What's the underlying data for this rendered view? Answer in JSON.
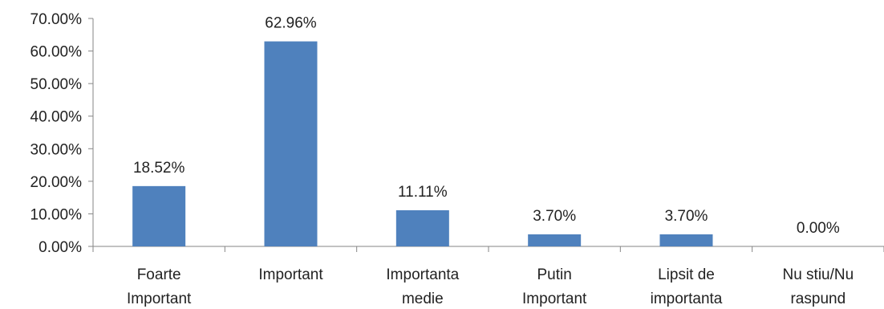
{
  "chart_data": {
    "type": "bar",
    "categories": [
      [
        "Foarte",
        "Important"
      ],
      [
        "Important"
      ],
      [
        "Importanta",
        "medie"
      ],
      [
        "Putin",
        "Important"
      ],
      [
        "Lipsit de",
        "importanta"
      ],
      [
        "Nu stiu/Nu",
        "raspund"
      ]
    ],
    "values": [
      18.52,
      62.96,
      11.11,
      3.7,
      3.7,
      0.0
    ],
    "data_labels": [
      "18.52%",
      "62.96%",
      "11.11%",
      "3.70%",
      "3.70%",
      "0.00%"
    ],
    "yticks": [
      "0.00%",
      "10.00%",
      "20.00%",
      "30.00%",
      "40.00%",
      "50.00%",
      "60.00%",
      "70.00%"
    ],
    "ylim": [
      0,
      70
    ],
    "grid": false,
    "legend": "none",
    "bar_color": "#4F81BD",
    "axis_color": "#868686"
  }
}
